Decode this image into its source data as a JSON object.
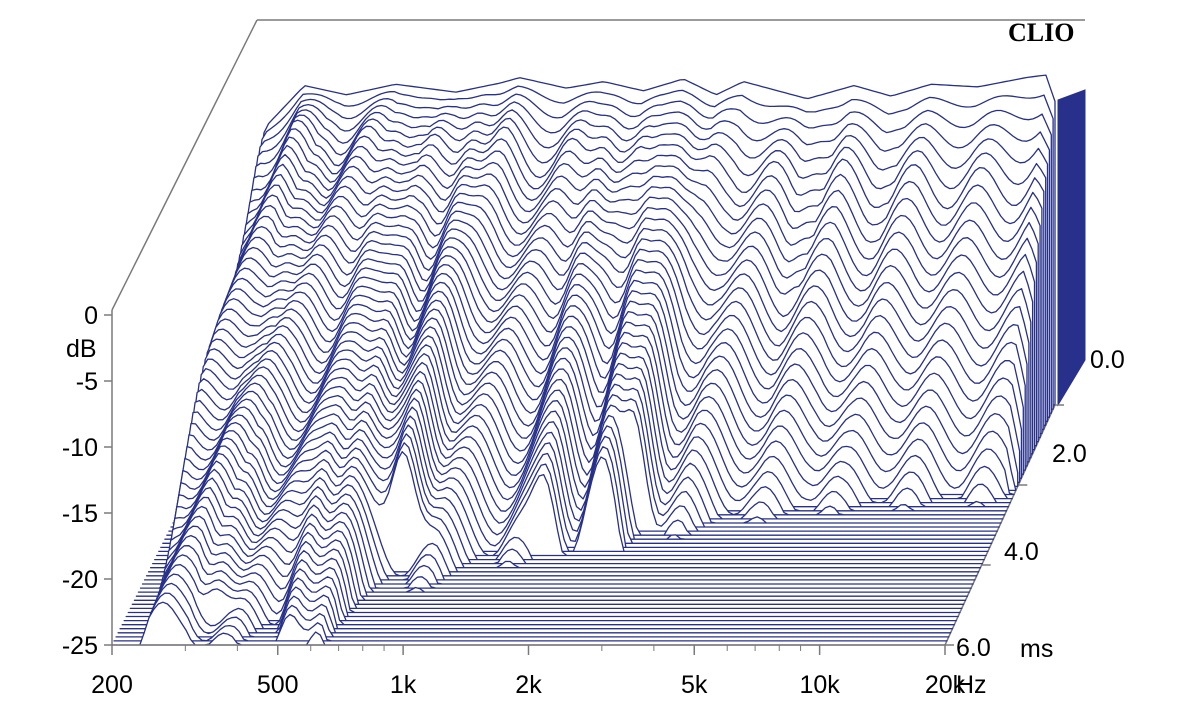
{
  "chart_data": {
    "type": "waterfall",
    "brand": "CLIO",
    "y_axis": {
      "label": "dB",
      "ticks": [
        0,
        -5,
        -10,
        -15,
        -20,
        -25
      ],
      "tick_labels": [
        "0",
        "-5",
        "-10",
        "-15",
        "-20",
        "-25"
      ],
      "range": [
        -25,
        0
      ]
    },
    "x_axis": {
      "unit": "Hz",
      "scale": "log",
      "range": [
        200,
        20000
      ],
      "ticks": [
        200,
        500,
        1000,
        2000,
        5000,
        10000,
        20000
      ],
      "tick_labels": [
        "200",
        "500",
        "1k",
        "2k",
        "5k",
        "10k",
        "20k"
      ],
      "minor_ticks": [
        300,
        400,
        600,
        700,
        800,
        900,
        3000,
        4000,
        6000,
        7000,
        8000,
        9000
      ]
    },
    "z_axis": {
      "unit": "ms",
      "range": [
        0,
        6
      ],
      "ticks": [
        0,
        2,
        4,
        6
      ],
      "tick_labels": [
        "0.0",
        "2.0",
        "4.0",
        "6.0"
      ]
    },
    "slice_count": 60,
    "floor_db": -25,
    "colors": {
      "trace": "#27308a",
      "axis": "#7a7a7a",
      "background": "#ffffff"
    },
    "first_slice_profile": [
      {
        "hz": 200,
        "db": -25
      },
      {
        "hz": 240,
        "db": -4
      },
      {
        "hz": 300,
        "db": -0.8
      },
      {
        "hz": 380,
        "db": -1.5
      },
      {
        "hz": 500,
        "db": -0.7
      },
      {
        "hz": 700,
        "db": -1.3
      },
      {
        "hz": 900,
        "db": -0.6
      },
      {
        "hz": 1000,
        "db": -0.2
      },
      {
        "hz": 1300,
        "db": -1.0
      },
      {
        "hz": 1600,
        "db": -0.5
      },
      {
        "hz": 2000,
        "db": -1.2
      },
      {
        "hz": 2500,
        "db": -0.3
      },
      {
        "hz": 3000,
        "db": -1.5
      },
      {
        "hz": 3500,
        "db": -0.5
      },
      {
        "hz": 5000,
        "db": -1.8
      },
      {
        "hz": 6500,
        "db": -0.8
      },
      {
        "hz": 8000,
        "db": -1.6
      },
      {
        "hz": 10000,
        "db": -0.7
      },
      {
        "hz": 13000,
        "db": -0.9
      },
      {
        "hz": 17000,
        "db": -0.2
      },
      {
        "hz": 19000,
        "db": 0
      },
      {
        "hz": 20000,
        "db": -2
      }
    ],
    "decay_peaks": [
      {
        "hz": 340,
        "db": -22,
        "ms": 5.6
      },
      {
        "hz": 530,
        "db": -23,
        "ms": 5.9
      },
      {
        "hz": 620,
        "db": -24,
        "ms": 6.0
      },
      {
        "hz": 820,
        "db": -16,
        "ms": 4.2
      },
      {
        "hz": 1700,
        "db": -19,
        "ms": 3.8
      },
      {
        "hz": 2350,
        "db": -18,
        "ms": 3.7
      },
      {
        "hz": 2600,
        "db": -16,
        "ms": 3.2
      },
      {
        "hz": 5500,
        "db": -13,
        "ms": 1.3
      },
      {
        "hz": 8500,
        "db": -13,
        "ms": 1.1
      }
    ]
  }
}
